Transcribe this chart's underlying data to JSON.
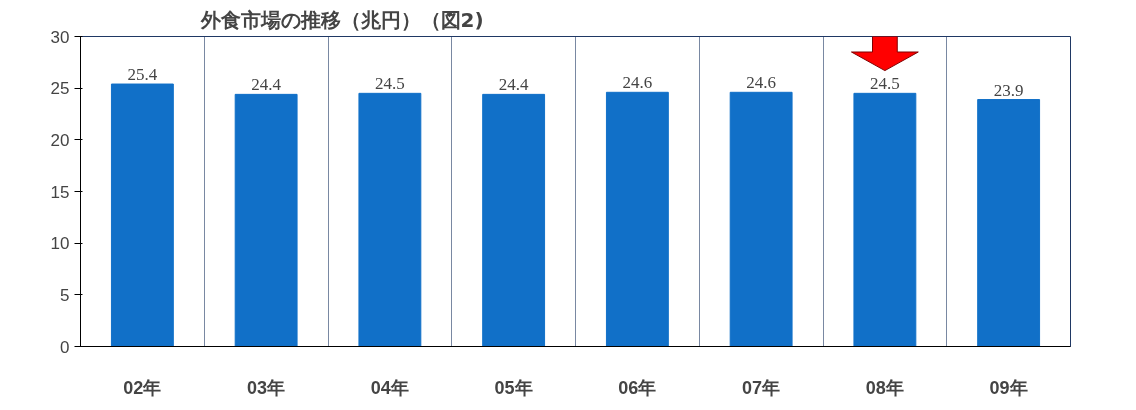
{
  "chart_data": {
    "type": "bar",
    "title": "外食市場の推移（兆円）（図2)",
    "categories": [
      "02年",
      "03年",
      "04年",
      "05年",
      "06年",
      "07年",
      "08年",
      "09年"
    ],
    "values": [
      25.4,
      24.4,
      24.5,
      24.4,
      24.6,
      24.6,
      24.5,
      23.9
    ],
    "color": "#1170c8",
    "ylim": [
      0,
      30
    ],
    "yticks": [
      0,
      5,
      10,
      15,
      20,
      25,
      30
    ],
    "grid": "x",
    "data_labels": true
  }
}
